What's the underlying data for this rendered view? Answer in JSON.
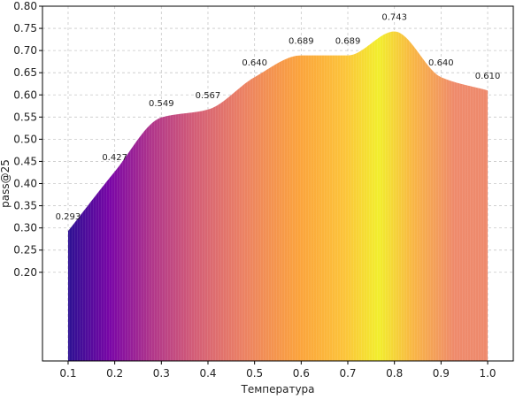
{
  "chart_data": {
    "type": "area",
    "xlabel": "Температура",
    "ylabel": "pass@25",
    "x": [
      0.1,
      0.2,
      0.3,
      0.4,
      0.5,
      0.6,
      0.7,
      0.8,
      0.9,
      1.0
    ],
    "series": [
      {
        "values": [
          0.293,
          0.427,
          0.549,
          0.567,
          0.64,
          0.689,
          0.689,
          0.743,
          0.64,
          0.61
        ],
        "value_labels": [
          "0.293",
          "0.427",
          "0.549",
          "0.567",
          "0.640",
          "0.689",
          "0.689",
          "0.743",
          "0.640",
          "0.610"
        ]
      }
    ],
    "x_ticks": [
      "0.1",
      "0.2",
      "0.3",
      "0.4",
      "0.5",
      "0.6",
      "0.7",
      "0.8",
      "0.9",
      "1.0"
    ],
    "y_ticks": [
      0.2,
      0.25,
      0.3,
      0.35,
      0.4,
      0.45,
      0.5,
      0.55,
      0.6,
      0.65,
      0.7,
      0.75,
      0.8
    ],
    "y_tick_labels": [
      "0.20",
      "0.25",
      "0.30",
      "0.35",
      "0.40",
      "0.45",
      "0.50",
      "0.55",
      "0.60",
      "0.65",
      "0.70",
      "0.75",
      "0.80"
    ],
    "xlim": [
      0.045,
      1.055
    ],
    "ylim": [
      0.0,
      0.8
    ],
    "area_baseline": 0.0,
    "grid": true,
    "colormap": "plasma"
  }
}
